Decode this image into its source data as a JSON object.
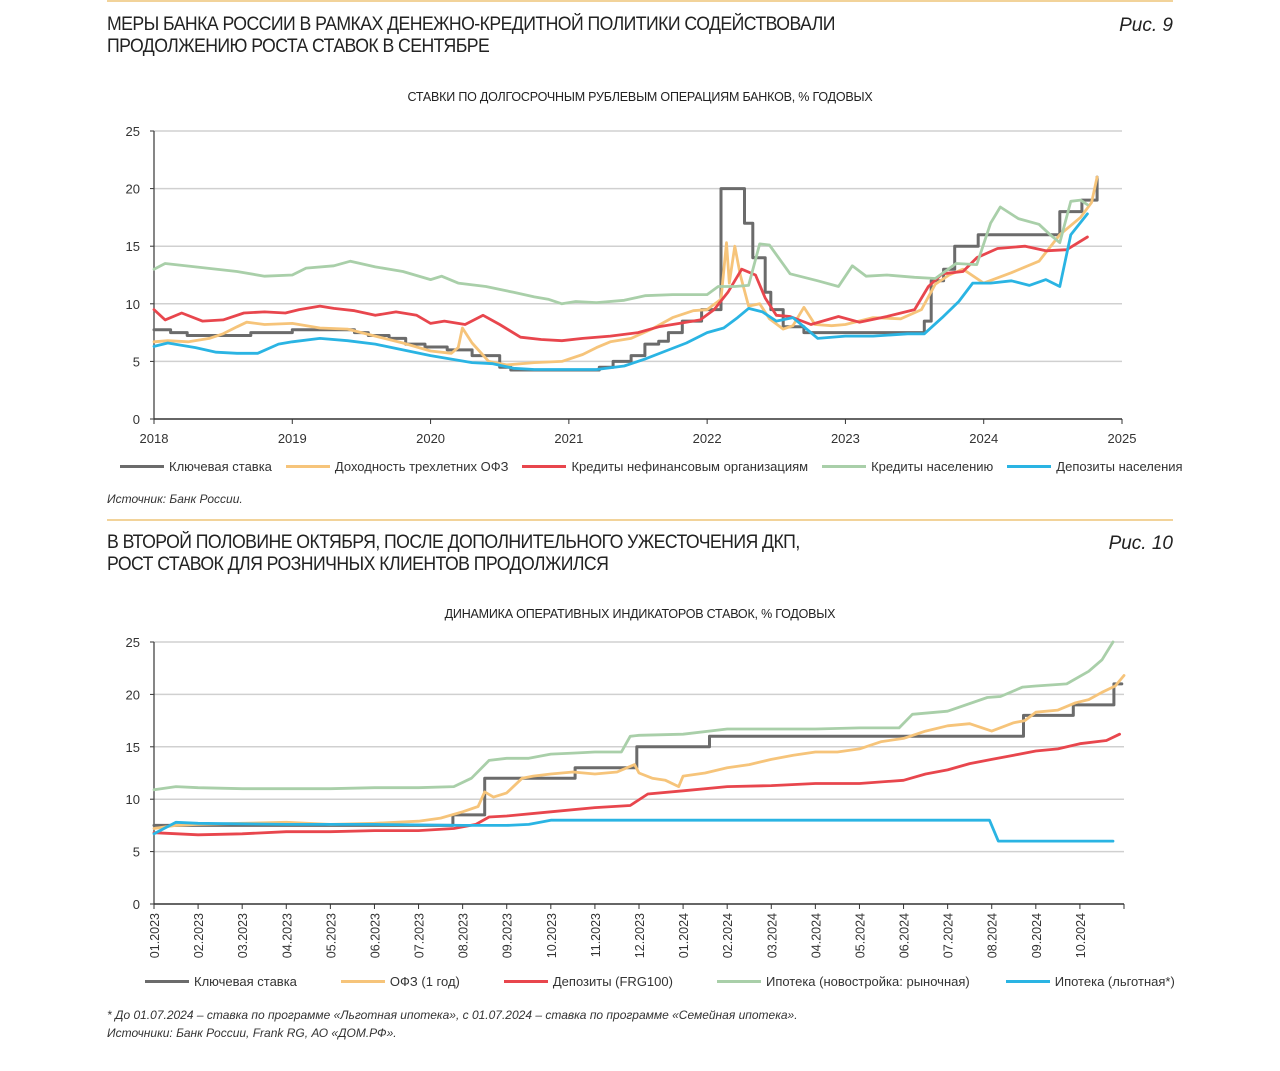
{
  "fig9": {
    "title_line1": "МЕРЫ БАНКА РОССИИ В РАМКАХ ДЕНЕЖНО-КРЕДИТНОЙ ПОЛИТИКИ СОДЕЙСТВОВАЛИ",
    "title_line2": "ПРОДОЛЖЕНИЮ РОСТА СТАВОК В СЕНТЯБРЕ",
    "fig_label": "Рис. 9",
    "source": "Источник: Банк России."
  },
  "fig10": {
    "title_line1": "В ВТОРОЙ ПОЛОВИНЕ ОКТЯБРЯ, ПОСЛЕ ДОПОЛНИТЕЛЬНОГО УЖЕСТОЧЕНИЯ ДКП,",
    "title_line2": "РОСТ СТАВОК ДЛЯ РОЗНИЧНЫХ КЛИЕНТОВ ПРОДОЛЖИЛСЯ",
    "fig_label": "Рис. 10",
    "footnote": "* До 01.07.2024 – ставка по программе «Льготная ипотека», с 01.07.2024 – ставка по программе «Семейная ипотека».",
    "source": "Источники: Банк России, Frank RG, АО «ДОМ.РФ»."
  },
  "chart_data": [
    {
      "type": "line",
      "title": "СТАВКИ ПО ДОЛГОСРОЧНЫМ РУБЛЕВЫМ ОПЕРАЦИЯМ БАНКОВ, % ГОДОВЫХ",
      "xlabel": "",
      "ylabel": "",
      "xlim": [
        2018,
        2025
      ],
      "ylim": [
        0,
        25
      ],
      "x_ticks": [
        "2018",
        "2019",
        "2020",
        "2021",
        "2022",
        "2023",
        "2024",
        "2025"
      ],
      "y_ticks": [
        "0",
        "5",
        "10",
        "15",
        "20",
        "25"
      ],
      "grid": true,
      "legend": "bottom",
      "series": [
        {
          "name": "Ключевая ставка",
          "color": "#6b6b6b",
          "step": true,
          "x": [
            2018.0,
            2018.12,
            2018.24,
            2018.7,
            2019.0,
            2019.45,
            2019.55,
            2019.7,
            2019.82,
            2019.96,
            2020.12,
            2020.3,
            2020.5,
            2020.58,
            2021.22,
            2021.32,
            2021.45,
            2021.55,
            2021.65,
            2021.72,
            2021.82,
            2021.96,
            2022.1,
            2022.16,
            2022.27,
            2022.33,
            2022.42,
            2022.46,
            2022.55,
            2022.7,
            2023.57,
            2023.62,
            2023.71,
            2023.79,
            2023.96,
            2024.55,
            2024.71,
            2024.78,
            2024.82
          ],
          "y": [
            7.75,
            7.5,
            7.25,
            7.5,
            7.75,
            7.5,
            7.25,
            7.0,
            6.5,
            6.25,
            6.0,
            5.5,
            4.5,
            4.25,
            4.5,
            5.0,
            5.5,
            6.5,
            6.75,
            7.5,
            8.5,
            9.5,
            20.0,
            20.0,
            17.0,
            14.0,
            11.0,
            9.5,
            8.0,
            7.5,
            8.5,
            12.0,
            13.0,
            15.0,
            16.0,
            18.0,
            19.0,
            19.0,
            21.0
          ]
        },
        {
          "name": "Доходность трехлетних ОФЗ",
          "color": "#f6c47a",
          "step": false,
          "x": [
            2018.0,
            2018.1,
            2018.25,
            2018.4,
            2018.5,
            2018.6,
            2018.67,
            2018.8,
            2019.0,
            2019.2,
            2019.4,
            2019.6,
            2019.8,
            2020.0,
            2020.15,
            2020.2,
            2020.23,
            2020.3,
            2020.42,
            2020.55,
            2020.75,
            2020.95,
            2021.1,
            2021.2,
            2021.3,
            2021.45,
            2021.6,
            2021.75,
            2021.9,
            2022.0,
            2022.1,
            2022.14,
            2022.16,
            2022.2,
            2022.24,
            2022.3,
            2022.38,
            2022.45,
            2022.55,
            2022.62,
            2022.7,
            2022.78,
            2022.9,
            2023.0,
            2023.2,
            2023.4,
            2023.55,
            2023.65,
            2023.75,
            2023.85,
            2024.0,
            2024.2,
            2024.4,
            2024.55,
            2024.7,
            2024.78,
            2024.82
          ],
          "y": [
            6.7,
            6.8,
            6.7,
            7.0,
            7.4,
            8.0,
            8.4,
            8.2,
            8.3,
            7.9,
            7.8,
            7.2,
            6.6,
            5.9,
            5.7,
            6.2,
            7.9,
            6.6,
            5.0,
            4.7,
            4.9,
            5.0,
            5.6,
            6.2,
            6.7,
            7.0,
            7.8,
            8.8,
            9.4,
            9.5,
            10.4,
            15.3,
            11.8,
            15.0,
            12.5,
            9.8,
            10.0,
            8.7,
            7.8,
            8.1,
            9.7,
            8.2,
            8.1,
            8.2,
            8.8,
            8.7,
            9.5,
            11.7,
            12.5,
            13.0,
            11.8,
            12.7,
            13.7,
            16.0,
            17.5,
            18.8,
            21.0
          ]
        },
        {
          "name": "Кредиты нефинансовым организациям",
          "color": "#e8464d",
          "step": false,
          "x": [
            2018.0,
            2018.08,
            2018.2,
            2018.35,
            2018.5,
            2018.65,
            2018.8,
            2018.95,
            2019.05,
            2019.2,
            2019.3,
            2019.45,
            2019.6,
            2019.75,
            2019.9,
            2020.0,
            2020.1,
            2020.25,
            2020.38,
            2020.5,
            2020.65,
            2020.8,
            2020.95,
            2021.1,
            2021.3,
            2021.5,
            2021.65,
            2021.8,
            2021.95,
            2022.05,
            2022.15,
            2022.25,
            2022.35,
            2022.42,
            2022.5,
            2022.6,
            2022.75,
            2022.95,
            2023.1,
            2023.3,
            2023.5,
            2023.6,
            2023.7,
            2023.85,
            2023.95,
            2024.1,
            2024.3,
            2024.45,
            2024.6,
            2024.75
          ],
          "y": [
            9.5,
            8.6,
            9.2,
            8.5,
            8.6,
            9.2,
            9.3,
            9.2,
            9.5,
            9.8,
            9.6,
            9.4,
            9.0,
            9.3,
            9.0,
            8.3,
            8.5,
            8.2,
            9.0,
            8.2,
            7.1,
            6.9,
            6.8,
            7.0,
            7.2,
            7.5,
            8.0,
            8.3,
            8.6,
            9.5,
            11.0,
            13.0,
            12.5,
            10.5,
            9.0,
            8.9,
            8.2,
            8.9,
            8.4,
            8.9,
            9.5,
            11.5,
            12.6,
            12.8,
            14.0,
            14.8,
            15.0,
            14.6,
            14.7,
            15.8
          ]
        },
        {
          "name": "Кредиты населению",
          "color": "#a9cfa9",
          "step": false,
          "x": [
            2018.0,
            2018.08,
            2018.3,
            2018.6,
            2018.8,
            2019.0,
            2019.1,
            2019.3,
            2019.42,
            2019.6,
            2019.8,
            2020.0,
            2020.08,
            2020.2,
            2020.4,
            2020.6,
            2020.75,
            2020.85,
            2020.95,
            2021.05,
            2021.2,
            2021.4,
            2021.55,
            2021.75,
            2022.0,
            2022.08,
            2022.2,
            2022.3,
            2022.38,
            2022.45,
            2022.6,
            2022.8,
            2022.95,
            2023.05,
            2023.15,
            2023.3,
            2023.5,
            2023.65,
            2023.8,
            2023.95,
            2024.05,
            2024.12,
            2024.25,
            2024.4,
            2024.48,
            2024.55,
            2024.63,
            2024.7,
            2024.75
          ],
          "y": [
            13.0,
            13.5,
            13.2,
            12.8,
            12.4,
            12.5,
            13.1,
            13.3,
            13.7,
            13.2,
            12.8,
            12.1,
            12.4,
            11.8,
            11.5,
            11.0,
            10.6,
            10.4,
            10.0,
            10.2,
            10.1,
            10.3,
            10.7,
            10.8,
            10.8,
            11.5,
            11.5,
            11.6,
            15.2,
            15.1,
            12.6,
            12.0,
            11.5,
            13.3,
            12.4,
            12.5,
            12.3,
            12.2,
            13.5,
            13.4,
            17.0,
            18.4,
            17.4,
            16.9,
            16.0,
            15.3,
            18.9,
            19.0,
            18.6
          ]
        },
        {
          "name": "Депозиты населения",
          "color": "#2ab4e3",
          "step": false,
          "x": [
            2018.0,
            2018.1,
            2018.3,
            2018.45,
            2018.6,
            2018.75,
            2018.9,
            2019.0,
            2019.2,
            2019.4,
            2019.6,
            2019.8,
            2020.0,
            2020.15,
            2020.3,
            2020.45,
            2020.6,
            2020.75,
            2021.0,
            2021.2,
            2021.4,
            2021.55,
            2021.7,
            2021.85,
            2022.0,
            2022.12,
            2022.22,
            2022.3,
            2022.4,
            2022.5,
            2022.62,
            2022.8,
            2023.0,
            2023.2,
            2023.45,
            2023.57,
            2023.7,
            2023.82,
            2023.92,
            2024.05,
            2024.2,
            2024.33,
            2024.45,
            2024.55,
            2024.63,
            2024.75
          ],
          "y": [
            6.3,
            6.6,
            6.2,
            5.8,
            5.7,
            5.7,
            6.5,
            6.7,
            7.0,
            6.8,
            6.5,
            6.0,
            5.5,
            5.2,
            4.9,
            4.8,
            4.4,
            4.3,
            4.3,
            4.3,
            4.6,
            5.2,
            5.9,
            6.6,
            7.5,
            7.9,
            8.8,
            9.6,
            9.3,
            8.5,
            8.8,
            7.0,
            7.2,
            7.2,
            7.4,
            7.4,
            8.8,
            10.2,
            11.8,
            11.8,
            12.0,
            11.6,
            12.1,
            11.5,
            16.0,
            17.8
          ]
        }
      ]
    },
    {
      "type": "line",
      "title": "ДИНАМИКА ОПЕРАТИВНЫХ ИНДИКАТОРОВ СТАВОК, % ГОДОВЫХ",
      "xlabel": "",
      "ylabel": "",
      "x_unit": "months since 01.2023",
      "xlim": [
        0,
        22
      ],
      "ylim": [
        0,
        25
      ],
      "x_ticks": [
        "01.2023",
        "02.2023",
        "03.2023",
        "04.2023",
        "05.2023",
        "06.2023",
        "07.2023",
        "08.2023",
        "09.2023",
        "10.2023",
        "11.2023",
        "12.2023",
        "01.2024",
        "02.2024",
        "03.2024",
        "04.2024",
        "05.2024",
        "06.2024",
        "07.2024",
        "08.2024",
        "09.2024",
        "10.2024"
      ],
      "y_ticks": [
        "0",
        "5",
        "10",
        "15",
        "20",
        "25"
      ],
      "grid": true,
      "legend": "bottom",
      "series": [
        {
          "name": "Ключевая ставка",
          "color": "#6b6b6b",
          "step": true,
          "x": [
            0,
            6.78,
            7.5,
            9.55,
            10.95,
            12.6,
            19.72,
            20.85,
            21.77,
            21.95
          ],
          "y": [
            7.5,
            8.5,
            12.0,
            13.0,
            15.0,
            16.0,
            18.0,
            19.0,
            21.0,
            21.0
          ]
        },
        {
          "name": "ОФЗ (1 год)",
          "color": "#f6c47a",
          "step": false,
          "x": [
            0,
            0.5,
            1.0,
            2.0,
            3.0,
            4.0,
            5.0,
            6.0,
            6.5,
            7.0,
            7.35,
            7.5,
            7.7,
            8.0,
            8.35,
            8.6,
            9.0,
            9.5,
            10.0,
            10.5,
            10.9,
            11.0,
            11.3,
            11.6,
            11.9,
            12.0,
            12.5,
            13.0,
            13.5,
            14.0,
            14.5,
            15.0,
            15.5,
            16.0,
            16.5,
            17.0,
            17.5,
            18.0,
            18.5,
            19.0,
            19.5,
            19.75,
            20.0,
            20.5,
            20.9,
            21.2,
            21.5,
            21.8,
            22.0
          ],
          "y": [
            7.2,
            7.5,
            7.6,
            7.7,
            7.8,
            7.6,
            7.7,
            7.9,
            8.2,
            8.8,
            9.3,
            10.7,
            10.2,
            10.6,
            12.0,
            12.2,
            12.4,
            12.6,
            12.4,
            12.6,
            13.3,
            12.5,
            12.0,
            11.8,
            11.2,
            12.2,
            12.5,
            13.0,
            13.3,
            13.8,
            14.2,
            14.5,
            14.5,
            14.8,
            15.5,
            15.8,
            16.5,
            17.0,
            17.2,
            16.5,
            17.3,
            17.5,
            18.3,
            18.5,
            19.2,
            19.5,
            20.2,
            20.8,
            21.8
          ]
        },
        {
          "name": "Депозиты (FRG100)",
          "color": "#e8464d",
          "step": false,
          "x": [
            0,
            1.0,
            2.0,
            3.0,
            4.0,
            5.0,
            6.0,
            6.8,
            7.3,
            7.6,
            8.0,
            9.0,
            10.0,
            10.8,
            11.2,
            12.0,
            13.0,
            14.0,
            15.0,
            16.0,
            17.0,
            17.5,
            18.0,
            18.5,
            19.0,
            19.5,
            20.0,
            20.5,
            21.0,
            21.6,
            21.9
          ],
          "y": [
            6.8,
            6.6,
            6.7,
            6.9,
            6.9,
            7.0,
            7.0,
            7.2,
            7.6,
            8.3,
            8.4,
            8.8,
            9.2,
            9.4,
            10.5,
            10.8,
            11.2,
            11.3,
            11.5,
            11.5,
            11.8,
            12.4,
            12.8,
            13.4,
            13.8,
            14.2,
            14.6,
            14.8,
            15.3,
            15.6,
            16.2
          ]
        },
        {
          "name": "Ипотека (новостройка: рыночная)",
          "color": "#a9cfa9",
          "step": false,
          "x": [
            0,
            0.5,
            1.0,
            2.0,
            3.0,
            4.0,
            5.0,
            6.0,
            6.8,
            7.2,
            7.6,
            8.0,
            8.5,
            9.0,
            9.5,
            10.0,
            10.6,
            10.8,
            11.0,
            12.0,
            13.0,
            14.0,
            15.0,
            16.0,
            16.9,
            17.2,
            18.0,
            18.9,
            19.2,
            19.7,
            20.0,
            20.7,
            21.2,
            21.5,
            21.75
          ],
          "y": [
            10.9,
            11.2,
            11.1,
            11.0,
            11.0,
            11.0,
            11.1,
            11.1,
            11.2,
            12.0,
            13.7,
            13.9,
            13.9,
            14.3,
            14.4,
            14.5,
            14.5,
            16.0,
            16.1,
            16.2,
            16.7,
            16.7,
            16.7,
            16.8,
            16.8,
            18.1,
            18.4,
            19.7,
            19.8,
            20.7,
            20.8,
            21.0,
            22.2,
            23.3,
            25.0
          ]
        },
        {
          "name": "Ипотека (льготная*)",
          "color": "#2ab4e3",
          "step": false,
          "x": [
            0,
            0.5,
            1.0,
            3.0,
            5.0,
            7.0,
            8.0,
            8.5,
            9.0,
            10.0,
            12.0,
            14.0,
            16.0,
            18.0,
            18.95,
            19.15,
            20.0,
            21.0,
            21.75
          ],
          "y": [
            6.7,
            7.8,
            7.7,
            7.6,
            7.6,
            7.5,
            7.5,
            7.6,
            8.0,
            8.0,
            8.0,
            8.0,
            8.0,
            8.0,
            8.0,
            6.0,
            6.0,
            6.0,
            6.0
          ]
        }
      ]
    }
  ]
}
